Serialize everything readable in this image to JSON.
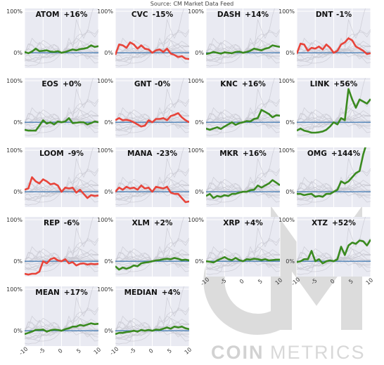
{
  "source": "Source: CM Market Data Feed",
  "watermark": {
    "primary": "COIN",
    "secondary": "METRICS",
    "mark": "CM"
  },
  "colors": {
    "up": "#3a8a1f",
    "down": "#e8443a",
    "zero": "#4a7fb5",
    "background": "#e9eaf2",
    "grid": "#ffffff",
    "ghost": "#c9c9d2"
  },
  "chart_data": {
    "type": "line",
    "layout": "small-multiples",
    "x": [
      -10,
      -9,
      -8,
      -7,
      -6,
      -5,
      -4,
      -3,
      -2,
      -1,
      0,
      1,
      2,
      3,
      4,
      5,
      6,
      7,
      8,
      9,
      10
    ],
    "ylim_default": [
      -0.3,
      1.0
    ],
    "yticks": [
      "0%",
      "100%"
    ],
    "yticks_values": [
      0,
      1
    ],
    "xticks": [
      "-10",
      "-5",
      "0",
      "5",
      "10"
    ],
    "xticks_values": [
      -10,
      -5,
      0,
      5,
      10
    ],
    "grid": true,
    "panels": [
      {
        "name": "ATOM",
        "label": "+16%",
        "direction": "up",
        "values": [
          0.02,
          -0.01,
          0.03,
          0.1,
          0.04,
          0.05,
          0.06,
          0.03,
          0.02,
          0.04,
          0.0,
          0.02,
          0.05,
          0.08,
          0.06,
          0.09,
          0.1,
          0.12,
          0.18,
          0.14,
          0.16
        ]
      },
      {
        "name": "CVC",
        "label": "-15%",
        "direction": "down",
        "values": [
          -0.05,
          0.2,
          0.18,
          0.12,
          0.25,
          0.2,
          0.1,
          0.18,
          0.1,
          0.08,
          0.0,
          0.06,
          0.08,
          0.02,
          0.1,
          -0.02,
          -0.05,
          -0.1,
          -0.08,
          -0.14,
          -0.15
        ]
      },
      {
        "name": "DASH",
        "label": "+14%",
        "direction": "up",
        "values": [
          -0.03,
          -0.01,
          0.02,
          0.0,
          -0.02,
          0.01,
          0.0,
          -0.01,
          0.02,
          0.03,
          0.0,
          0.02,
          0.05,
          0.1,
          0.08,
          0.06,
          0.1,
          0.12,
          0.18,
          0.16,
          0.14
        ]
      },
      {
        "name": "DNT",
        "label": "-1%",
        "direction": "down",
        "values": [
          -0.02,
          0.22,
          0.2,
          0.05,
          0.12,
          0.1,
          0.15,
          0.08,
          0.2,
          0.12,
          0.0,
          0.05,
          0.2,
          0.25,
          0.35,
          0.3,
          0.15,
          0.1,
          0.05,
          -0.03,
          -0.01
        ]
      },
      {
        "name": "EOS",
        "label": "+0%",
        "direction": "up",
        "values": [
          -0.18,
          -0.2,
          -0.2,
          -0.2,
          -0.08,
          0.05,
          -0.03,
          0.0,
          -0.05,
          0.02,
          0.0,
          0.02,
          0.1,
          -0.02,
          -0.01,
          0.0,
          0.0,
          -0.05,
          -0.02,
          0.02,
          0.0
        ]
      },
      {
        "name": "GNT",
        "label": "-0%",
        "direction": "down",
        "values": [
          0.05,
          0.1,
          0.05,
          0.06,
          0.04,
          0.0,
          -0.05,
          -0.1,
          -0.08,
          0.05,
          0.0,
          0.08,
          0.08,
          0.1,
          0.05,
          0.15,
          0.18,
          0.22,
          0.12,
          0.05,
          0.0
        ]
      },
      {
        "name": "KNC",
        "label": "+16%",
        "direction": "up",
        "values": [
          -0.15,
          -0.18,
          -0.15,
          -0.12,
          -0.16,
          -0.1,
          -0.05,
          0.0,
          -0.06,
          -0.02,
          0.0,
          0.03,
          0.02,
          0.08,
          0.1,
          0.3,
          0.25,
          0.2,
          0.12,
          0.17,
          0.16
        ]
      },
      {
        "name": "LINK",
        "label": "+56%",
        "direction": "up",
        "values": [
          -0.2,
          -0.15,
          -0.2,
          -0.22,
          -0.25,
          -0.25,
          -0.24,
          -0.22,
          -0.18,
          -0.1,
          0.0,
          -0.05,
          0.1,
          0.05,
          0.8,
          0.55,
          0.35,
          0.55,
          0.5,
          0.45,
          0.56
        ]
      },
      {
        "name": "LOOM",
        "label": "-9%",
        "direction": "down",
        "values": [
          0.05,
          0.08,
          0.35,
          0.25,
          0.2,
          0.3,
          0.25,
          0.18,
          0.2,
          0.15,
          0.0,
          0.1,
          0.08,
          0.1,
          -0.02,
          0.05,
          -0.05,
          -0.15,
          -0.08,
          -0.1,
          -0.09
        ]
      },
      {
        "name": "MANA",
        "label": "-23%",
        "direction": "down",
        "values": [
          0.0,
          0.1,
          0.05,
          0.12,
          0.08,
          0.1,
          0.05,
          0.15,
          0.08,
          0.1,
          0.0,
          0.12,
          0.1,
          0.08,
          0.12,
          -0.02,
          -0.05,
          -0.05,
          -0.15,
          -0.25,
          -0.23
        ]
      },
      {
        "name": "MKR",
        "label": "+16%",
        "direction": "up",
        "values": [
          -0.1,
          -0.05,
          -0.15,
          -0.1,
          -0.12,
          -0.08,
          -0.1,
          -0.05,
          -0.05,
          -0.02,
          0.0,
          0.0,
          0.04,
          0.05,
          0.15,
          0.1,
          0.15,
          0.2,
          0.28,
          0.22,
          0.16
        ]
      },
      {
        "name": "OMG",
        "label": "+144%",
        "direction": "up",
        "values": [
          -0.05,
          -0.05,
          -0.08,
          -0.06,
          -0.05,
          -0.12,
          -0.1,
          -0.12,
          -0.05,
          -0.05,
          0.0,
          0.05,
          0.25,
          0.2,
          0.25,
          0.35,
          0.45,
          0.5,
          0.9,
          1.2,
          1.44
        ]
      },
      {
        "name": "REP",
        "label": "-6%",
        "direction": "down",
        "values": [
          -0.3,
          -0.32,
          -0.3,
          -0.3,
          -0.25,
          0.0,
          -0.05,
          0.05,
          0.08,
          0.02,
          0.0,
          0.05,
          -0.05,
          -0.02,
          -0.1,
          -0.06,
          -0.05,
          -0.08,
          -0.06,
          -0.07,
          -0.06
        ]
      },
      {
        "name": "XLM",
        "label": "+2%",
        "direction": "up",
        "values": [
          -0.12,
          -0.2,
          -0.15,
          -0.18,
          -0.15,
          -0.1,
          -0.12,
          -0.05,
          -0.03,
          -0.02,
          0.0,
          0.02,
          0.03,
          0.05,
          0.06,
          0.05,
          0.08,
          0.06,
          0.03,
          0.04,
          0.02
        ]
      },
      {
        "name": "XRP",
        "label": "+4%",
        "direction": "up",
        "values": [
          0.0,
          -0.01,
          -0.03,
          0.02,
          0.06,
          0.1,
          0.05,
          0.03,
          0.08,
          0.03,
          0.0,
          0.05,
          0.04,
          0.06,
          0.05,
          0.03,
          0.05,
          0.02,
          0.03,
          0.04,
          0.04
        ]
      },
      {
        "name": "XTZ",
        "label": "+52%",
        "direction": "up",
        "values": [
          -0.02,
          0.0,
          0.05,
          0.05,
          0.25,
          0.0,
          0.05,
          -0.05,
          0.0,
          0.02,
          0.0,
          0.05,
          0.35,
          0.15,
          0.38,
          0.45,
          0.42,
          0.5,
          0.48,
          0.38,
          0.52
        ]
      },
      {
        "name": "MEAN",
        "label": "+17%",
        "direction": "up",
        "values": [
          -0.08,
          -0.05,
          -0.02,
          0.02,
          0.02,
          0.03,
          -0.02,
          0.01,
          0.03,
          0.02,
          0.0,
          0.04,
          0.06,
          0.1,
          0.1,
          0.14,
          0.12,
          0.15,
          0.18,
          0.16,
          0.17
        ]
      },
      {
        "name": "MEDIAN",
        "label": "+4%",
        "direction": "up",
        "values": [
          -0.08,
          -0.05,
          -0.05,
          -0.03,
          -0.02,
          0.0,
          -0.02,
          0.02,
          0.0,
          0.02,
          0.0,
          0.03,
          0.02,
          0.05,
          0.08,
          0.05,
          0.1,
          0.08,
          0.1,
          0.06,
          0.04
        ]
      }
    ]
  }
}
